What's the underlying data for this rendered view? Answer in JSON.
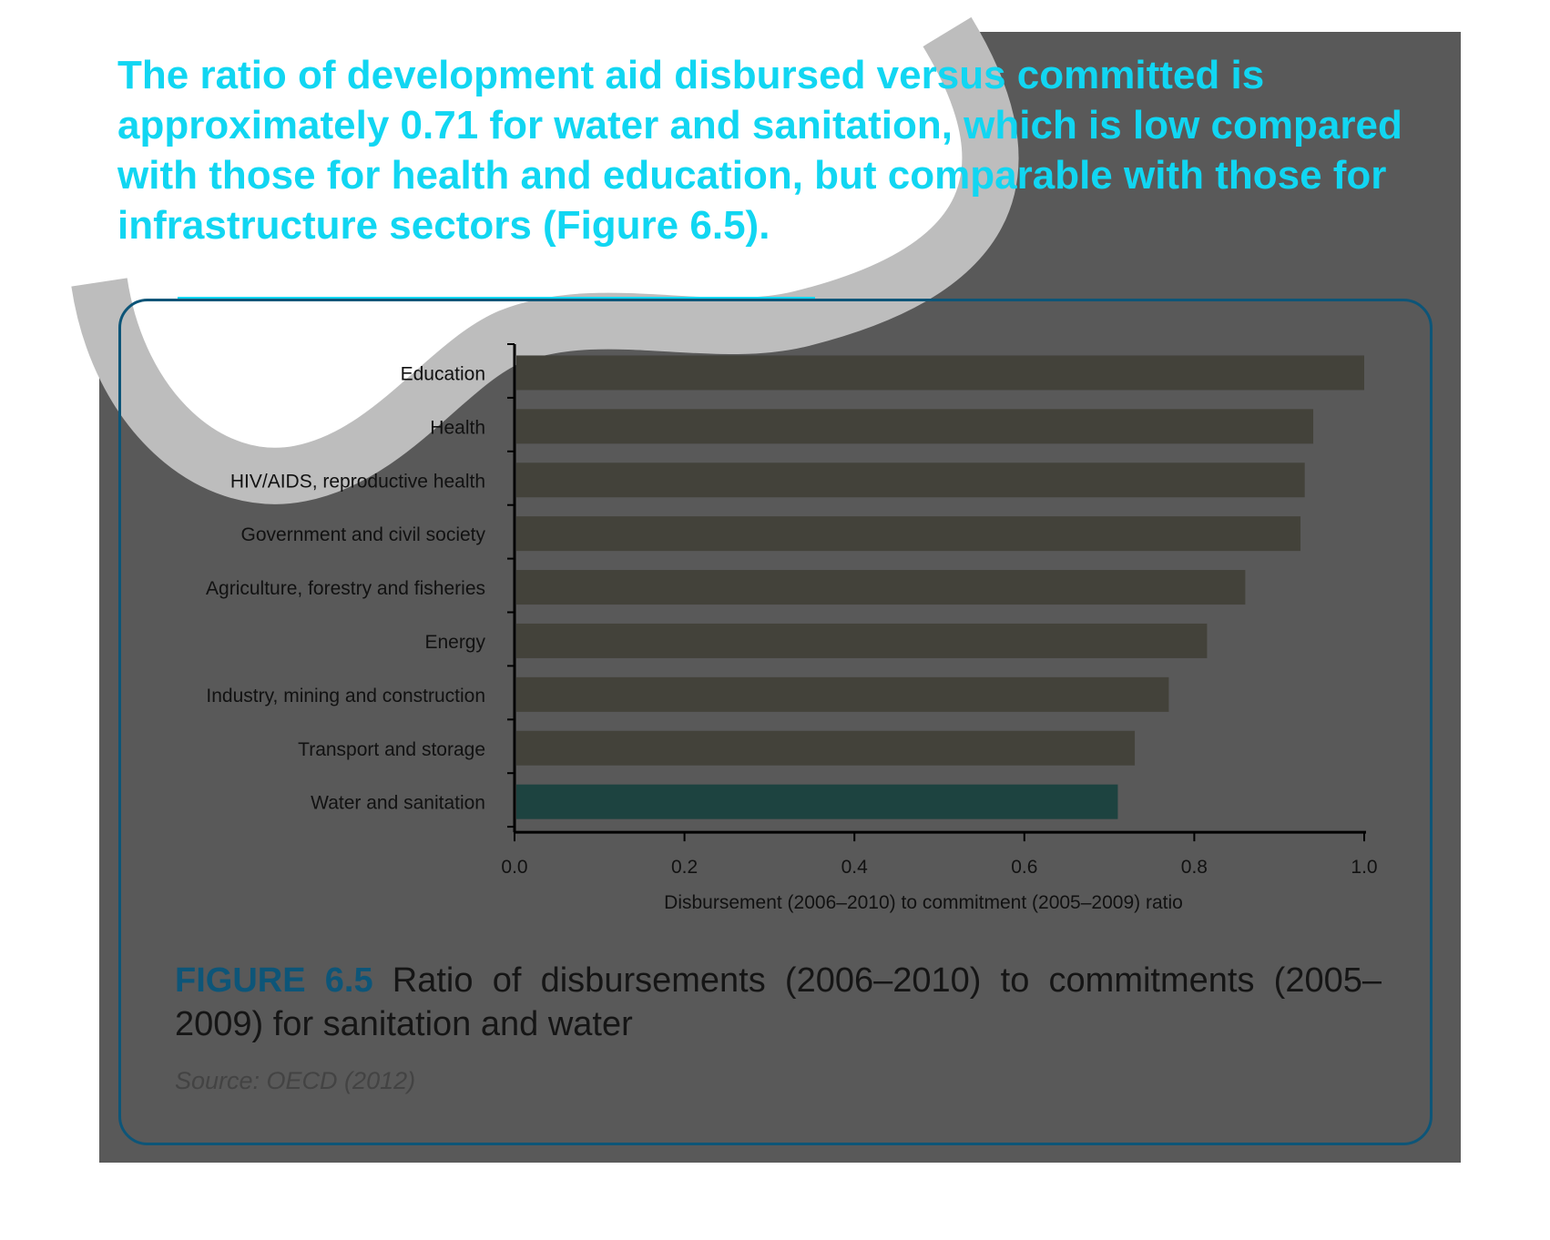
{
  "headline": "The ratio of development aid disbursed versus committed is approximately 0.71 for water and sanitation, which is low compared with those for health and education, but comparable with those for infrastructure sectors (Figure 6.5).",
  "figure": {
    "label": "FIGURE 6.5",
    "caption": " Ratio of disbursements (2006–2010) to commitments (2005–2009) for sanitation and water",
    "source": "Source: OECD (2012)"
  },
  "colors": {
    "headline": "#11d6f2",
    "panel": "#595959",
    "card_border": "#0d5578",
    "bar": "#43423a",
    "highlight_bar": "#1d4340"
  },
  "chart_data": {
    "type": "bar",
    "orientation": "horizontal",
    "categories": [
      "Education",
      "Health",
      "HIV/AIDS, reproductive health",
      "Government and civil society",
      "Agriculture, forestry and fisheries",
      "Energy",
      "Industry, mining and construction",
      "Transport and storage",
      "Water and sanitation"
    ],
    "values": [
      1.0,
      0.94,
      0.93,
      0.925,
      0.86,
      0.815,
      0.77,
      0.73,
      0.71
    ],
    "highlight": "Water and sanitation",
    "xlabel": "Disbursement (2006–2010) to commitment (2005–2009) ratio",
    "ylabel": "",
    "xlim": [
      0.0,
      1.0
    ],
    "xticks": [
      "0.0",
      "0.2",
      "0.4",
      "0.6",
      "0.8",
      "1.0"
    ],
    "grid": false,
    "legend": "none"
  }
}
